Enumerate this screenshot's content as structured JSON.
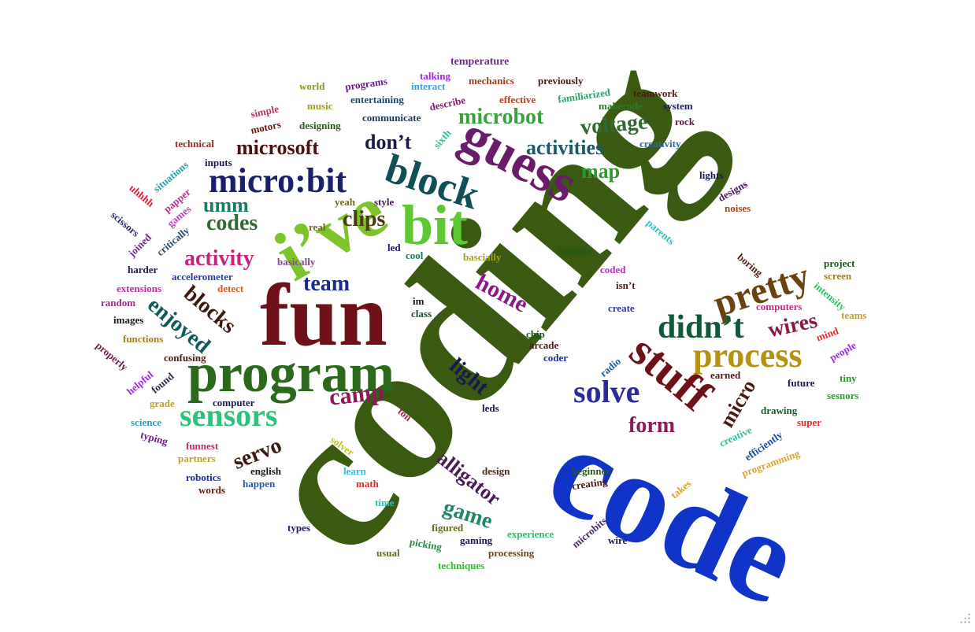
{
  "colors": {
    "dark_green": "#3a5a12",
    "royal_blue": "#1034c8",
    "maroon": "#6e1118",
    "purple": "#7a157a",
    "navy": "#0f1f5e",
    "lime": "#7cc42a",
    "olive_gold": "#b59210",
    "teal": "#0f6468",
    "green": "#1c8a2a",
    "brown": "#6a4410",
    "magenta": "#c8237a"
  },
  "words": [
    {
      "text": "coding",
      "color": "#3a5a12"
    },
    {
      "text": "code",
      "color": "#1034c8"
    },
    {
      "text": "fun",
      "color": "#6e1118"
    },
    {
      "text": "i’ve",
      "color": "#7cc42a"
    },
    {
      "text": "program",
      "color": "#2a6a1a"
    },
    {
      "text": "guess",
      "color": "#6a1b6a"
    },
    {
      "text": "bit",
      "color": "#5cc832"
    },
    {
      "text": "block",
      "color": "#0f4f55"
    },
    {
      "text": "micro:bit",
      "color": "#1a1f6b"
    },
    {
      "text": "stuff",
      "color": "#6e1118"
    },
    {
      "text": "pretty",
      "color": "#6a4410"
    },
    {
      "text": "didn’t",
      "color": "#0f5a3a"
    },
    {
      "text": "process",
      "color": "#b59210"
    },
    {
      "text": "sensors",
      "color": "#2ec27a"
    },
    {
      "text": "solve",
      "color": "#2a2a9a"
    },
    {
      "text": "microsoft",
      "color": "#4a1010"
    },
    {
      "text": "microbot",
      "color": "#3aa23a"
    },
    {
      "text": "voltage",
      "color": "#2f6b2f"
    },
    {
      "text": "don’t",
      "color": "#1a1a4a"
    },
    {
      "text": "activities",
      "color": "#1a5a6a"
    },
    {
      "text": "activity",
      "color": "#c8237a"
    },
    {
      "text": "codes",
      "color": "#2f6b2f"
    },
    {
      "text": "clips",
      "color": "#4a3a10"
    },
    {
      "text": "umm",
      "color": "#1a7a6a"
    },
    {
      "text": "team",
      "color": "#1a2a8a"
    },
    {
      "text": "blocks",
      "color": "#3a1a10"
    },
    {
      "text": "enjoyed",
      "color": "#0f5a5a"
    },
    {
      "text": "home",
      "color": "#8a1a8a"
    },
    {
      "text": "map",
      "color": "#2a9a2a"
    },
    {
      "text": "wires",
      "color": "#8a1a4a"
    },
    {
      "text": "light",
      "color": "#1a1a4a"
    },
    {
      "text": "camp",
      "color": "#8a1a5a"
    },
    {
      "text": "servo",
      "color": "#3a1a10"
    },
    {
      "text": "alligator",
      "color": "#4a1a5a"
    },
    {
      "text": "game",
      "color": "#1a8a6a"
    },
    {
      "text": "form",
      "color": "#8a1a5a"
    },
    {
      "text": "micro",
      "color": "#4a1a10"
    },
    {
      "text": "temperature",
      "color": "#6a2a8a"
    },
    {
      "text": "talking",
      "color": "#a02ae0"
    },
    {
      "text": "programs",
      "color": "#6a1a8a"
    },
    {
      "text": "interact",
      "color": "#3aa0e0"
    },
    {
      "text": "mechanics",
      "color": "#a0401a"
    },
    {
      "text": "previously",
      "color": "#4a1a10"
    },
    {
      "text": "world",
      "color": "#8a9a1a"
    },
    {
      "text": "music",
      "color": "#a0a01a"
    },
    {
      "text": "entertaining",
      "color": "#1a4a6a"
    },
    {
      "text": "describe",
      "color": "#8a1a6a"
    },
    {
      "text": "effective",
      "color": "#c83a1a"
    },
    {
      "text": "familiarized",
      "color": "#2aa06a"
    },
    {
      "text": "teamwork",
      "color": "#4a1a10"
    },
    {
      "text": "makecode",
      "color": "#2a7a2a"
    },
    {
      "text": "system",
      "color": "#1a1a6a"
    },
    {
      "text": "simple",
      "color": "#c82a6a"
    },
    {
      "text": "motors",
      "color": "#6a1a10"
    },
    {
      "text": "designing",
      "color": "#2a5a1a"
    },
    {
      "text": "communicate",
      "color": "#1a3a5a"
    },
    {
      "text": "sixth",
      "color": "#2ac0a0"
    },
    {
      "text": "rock",
      "color": "#6a1a4a"
    },
    {
      "text": "creativity",
      "color": "#2a6aa0"
    },
    {
      "text": "technical",
      "color": "#a02a2a"
    },
    {
      "text": "inputs",
      "color": "#1a1a4a"
    },
    {
      "text": "situations",
      "color": "#2aa0a0"
    },
    {
      "text": "papper",
      "color": "#c82a8a"
    },
    {
      "text": "uhhhh",
      "color": "#e0203a"
    },
    {
      "text": "games",
      "color": "#c040c0"
    },
    {
      "text": "scissors",
      "color": "#2a2a6a"
    },
    {
      "text": "joined",
      "color": "#6a2a8a"
    },
    {
      "text": "critically",
      "color": "#2a4a6a"
    },
    {
      "text": "real",
      "color": "#6a6a1a"
    },
    {
      "text": "yeah",
      "color": "#6a6a1a"
    },
    {
      "text": "style",
      "color": "#4a1a5a"
    },
    {
      "text": "led",
      "color": "#1a1a6a"
    },
    {
      "text": "cool",
      "color": "#1a7a4a"
    },
    {
      "text": "basically",
      "color": "#8a4a8a"
    },
    {
      "text": "bascially",
      "color": "#a0a01a"
    },
    {
      "text": "harder",
      "color": "#1a1a4a"
    },
    {
      "text": "accelerometer",
      "color": "#2a3a9a"
    },
    {
      "text": "extensions",
      "color": "#c02aa0"
    },
    {
      "text": "detect",
      "color": "#e05a1a"
    },
    {
      "text": "random",
      "color": "#a02a8a"
    },
    {
      "text": "images",
      "color": "#1a1a1a"
    },
    {
      "text": "im",
      "color": "#1a1a1a"
    },
    {
      "text": "class",
      "color": "#1a4a2a"
    },
    {
      "text": "functions",
      "color": "#a0801a"
    },
    {
      "text": "properly",
      "color": "#6a1a4a"
    },
    {
      "text": "confusing",
      "color": "#4a1a10"
    },
    {
      "text": "helpful",
      "color": "#a02ae0"
    },
    {
      "text": "found",
      "color": "#2a2a4a"
    },
    {
      "text": "grade",
      "color": "#c0a02a"
    },
    {
      "text": "computer",
      "color": "#1a1a4a"
    },
    {
      "text": "science",
      "color": "#2aa0c0"
    },
    {
      "text": "typing",
      "color": "#6a1a8a"
    },
    {
      "text": "funnest",
      "color": "#c02a6a"
    },
    {
      "text": "partners",
      "color": "#c0a02a"
    },
    {
      "text": "robotics",
      "color": "#1a2aa0"
    },
    {
      "text": "words",
      "color": "#6a1a10"
    },
    {
      "text": "english",
      "color": "#1a1a1a"
    },
    {
      "text": "happen",
      "color": "#2a5aa0"
    },
    {
      "text": "solver",
      "color": "#c0c02a"
    },
    {
      "text": "learn",
      "color": "#2ac0e0"
    },
    {
      "text": "math",
      "color": "#e02a2a"
    },
    {
      "text": "time",
      "color": "#2ac0c0"
    },
    {
      "text": "design",
      "color": "#4a2a1a"
    },
    {
      "text": "ton",
      "color": "#a01a4a"
    },
    {
      "text": "leds",
      "color": "#1a1a4a"
    },
    {
      "text": "types",
      "color": "#1a1a6a"
    },
    {
      "text": "figured",
      "color": "#6a6a1a"
    },
    {
      "text": "usual",
      "color": "#6a6a1a"
    },
    {
      "text": "picking",
      "color": "#2a8a4a"
    },
    {
      "text": "gaming",
      "color": "#1a1a4a"
    },
    {
      "text": "experience",
      "color": "#2ac06a"
    },
    {
      "text": "techniques",
      "color": "#2ac02a"
    },
    {
      "text": "processing",
      "color": "#6a4a1a"
    },
    {
      "text": "microbits",
      "color": "#4a2a5a"
    },
    {
      "text": "wire",
      "color": "#1a1a4a"
    },
    {
      "text": "beginner",
      "color": "#2a5a1a"
    },
    {
      "text": "creating",
      "color": "#4a1a10"
    },
    {
      "text": "chip",
      "color": "#1a5a1a"
    },
    {
      "text": "arcade",
      "color": "#4a1a10"
    },
    {
      "text": "coder",
      "color": "#1a2aa0"
    },
    {
      "text": "radio",
      "color": "#1a5aa0"
    },
    {
      "text": "isn’t",
      "color": "#4a1a10"
    },
    {
      "text": "create",
      "color": "#2a3aa0"
    },
    {
      "text": "coded",
      "color": "#c02ac0"
    },
    {
      "text": "favorite",
      "color": "#1a5a1a"
    },
    {
      "text": "parents",
      "color": "#2ac0c0"
    },
    {
      "text": "lights",
      "color": "#1a1a4a"
    },
    {
      "text": "designs",
      "color": "#4a1a5a"
    },
    {
      "text": "noises",
      "color": "#a04a1a"
    },
    {
      "text": "boring",
      "color": "#4a1a10"
    },
    {
      "text": "project",
      "color": "#1a5a1a"
    },
    {
      "text": "screen",
      "color": "#a0801a"
    },
    {
      "text": "intensity",
      "color": "#2ac06a"
    },
    {
      "text": "computers",
      "color": "#c02a8a"
    },
    {
      "text": "teams",
      "color": "#c0a02a"
    },
    {
      "text": "mind",
      "color": "#e02a2a"
    },
    {
      "text": "people",
      "color": "#a02ae0"
    },
    {
      "text": "tiny",
      "color": "#2a9a2a"
    },
    {
      "text": "earned",
      "color": "#4a1a10"
    },
    {
      "text": "future",
      "color": "#1a1a4a"
    },
    {
      "text": "sesnors",
      "color": "#2a9a2a"
    },
    {
      "text": "drawing",
      "color": "#1a5a2a"
    },
    {
      "text": "super",
      "color": "#e02a2a"
    },
    {
      "text": "creative",
      "color": "#2ac0a0"
    },
    {
      "text": "efficiently",
      "color": "#1a4aa0"
    },
    {
      "text": "programming",
      "color": "#e0a02a"
    },
    {
      "text": "takes",
      "color": "#e0a02a"
    }
  ]
}
